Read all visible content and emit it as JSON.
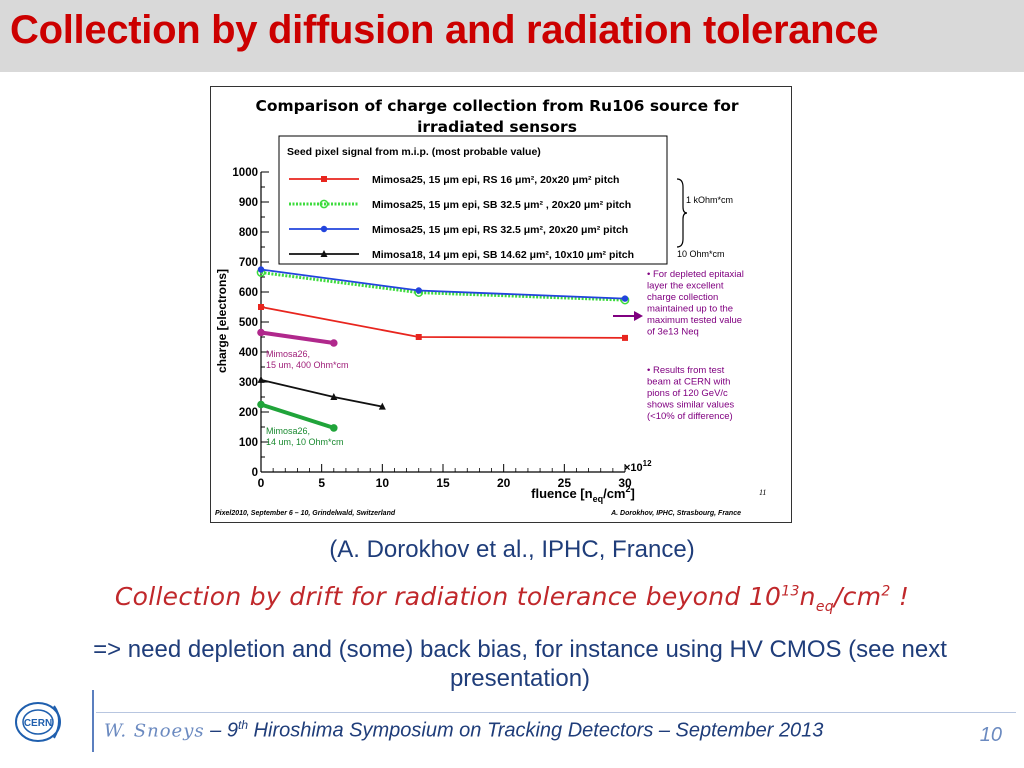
{
  "slide": {
    "title": "Collection by diffusion and radiation tolerance",
    "caption": "(A. Dorokhov et al., IPHC, France)",
    "drift_text": "Collection by drift for radiation tolerance beyond 10",
    "drift_sup": "13",
    "drift_n": "n",
    "drift_sub": "eq",
    "drift_tail": "/cm",
    "drift_sup2": "2",
    "drift_end": " !",
    "need_text": "=> need depletion and (some) back bias, for instance using HV CMOS (see next presentation)",
    "footer_author": "W. Snoeys",
    "footer_sep": " – 9",
    "footer_sup": "th",
    "footer_event": " Hiroshima Symposium on Tracking Detectors – September 2013",
    "page_number": "10",
    "logo_text": "CERN"
  },
  "chart_data": {
    "type": "line",
    "title": "Comparison of charge collection from Ru106 source for",
    "title_line2": "irradiated sensors",
    "xlabel": "fluence [n",
    "xlabel_sub": "eq",
    "xlabel_tail": "/cm",
    "xlabel_sup": "2",
    "xlabel_end": "]",
    "ylabel": "charge [electrons]",
    "xlim": [
      0,
      30
    ],
    "ylim": [
      0,
      1000
    ],
    "x_ticks": [
      0,
      5,
      10,
      15,
      20,
      25,
      30
    ],
    "y_ticks": [
      0,
      100,
      200,
      300,
      400,
      500,
      600,
      700,
      800,
      900,
      1000
    ],
    "x_multiplier": "×10",
    "x_multiplier_exp": "12",
    "legend_title": "Seed pixel signal from m.i.p. (most probable value)",
    "legend_placement": "top",
    "series": [
      {
        "name": "Mimosa25, 15 μm epi, RS 16 μm², 20x20 μm² pitch",
        "color": "#e8251e",
        "marker": "square",
        "dashed": false,
        "x": [
          0,
          13,
          30
        ],
        "y": [
          550,
          450,
          447
        ]
      },
      {
        "name": "Mimosa25, 15 μm epi, SB 32.5 μm² , 20x20 μm² pitch",
        "color": "#3ddb3d",
        "marker": "circle-open",
        "dashed": true,
        "x": [
          0,
          13,
          30
        ],
        "y": [
          665,
          598,
          573
        ]
      },
      {
        "name": "Mimosa25, 15 μm epi, RS 32.5 μm², 20x20 μm² pitch",
        "color": "#2244dd",
        "marker": "circle",
        "dashed": false,
        "x": [
          0,
          13,
          30
        ],
        "y": [
          675,
          605,
          578
        ]
      },
      {
        "name": "Mimosa18, 14 μm epi, SB 14.62 μm², 10x10 μm² pitch",
        "color": "#111111",
        "marker": "triangle",
        "dashed": false,
        "x": [
          0,
          6,
          10
        ],
        "y": [
          307,
          250,
          218
        ]
      }
    ],
    "extra_series": [
      {
        "color": "#b0288c",
        "x": [
          0,
          6
        ],
        "y": [
          465,
          430
        ]
      },
      {
        "color": "#20a43a",
        "x": [
          0,
          6
        ],
        "y": [
          225,
          147
        ]
      }
    ],
    "annotations": {
      "kohm": "1 kOhm*cm",
      "ohm": "10 Ohm*cm",
      "mimosa26_a_line1": "Mimosa26,",
      "mimosa26_a_line2": "15 um, 400 Ohm*cm",
      "mimosa26_b_line1": "Mimosa26,",
      "mimosa26_b_line2": "14 um, 10 Ohm*cm",
      "note1": [
        "• For depleted epitaxial",
        "layer the excellent",
        "charge collection",
        "maintained up to the",
        "maximum tested value",
        "of 3e13 Neq"
      ],
      "note2": [
        "• Results from test",
        "beam at CERN with",
        "pions of 120 GeV/c",
        "shows similar values",
        "(<10% of difference)"
      ],
      "footer_left": "Pixel2010, September 6 – 10, Grindelwald, Switzerland",
      "footer_right": "A. Dorokhov, IPHC, Strasbourg, France",
      "slide_num": "11"
    }
  }
}
